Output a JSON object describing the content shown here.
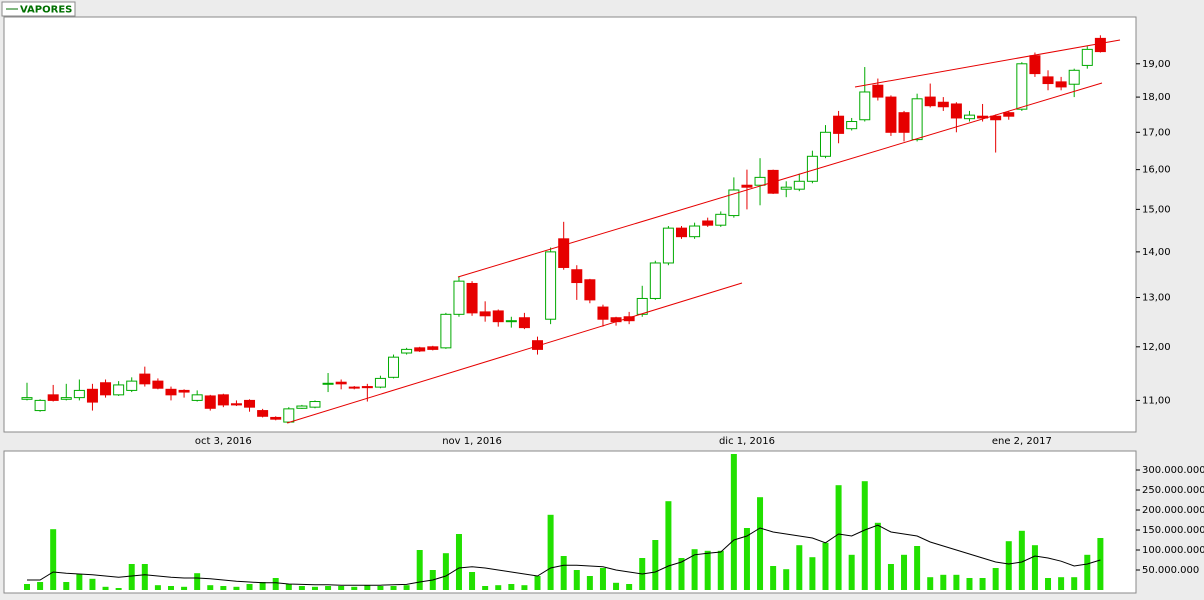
{
  "chart_data": [
    {
      "type": "candlestick",
      "legend": "VAPORES",
      "log_scale": true,
      "up_color": "#00aa00",
      "down_color": "#e60000",
      "categories": [
        null,
        null,
        null,
        null,
        null,
        null,
        null,
        null,
        null,
        null,
        null,
        null,
        null,
        null,
        null,
        "oct 3, 2016",
        null,
        null,
        null,
        null,
        null,
        null,
        null,
        null,
        null,
        null,
        null,
        null,
        null,
        null,
        null,
        null,
        null,
        null,
        "nov 1, 2016",
        null,
        null,
        null,
        null,
        null,
        null,
        null,
        null,
        null,
        null,
        null,
        null,
        null,
        null,
        null,
        null,
        null,
        null,
        null,
        null,
        "dic 1, 2016",
        null,
        null,
        null,
        null,
        null,
        null,
        null,
        null,
        null,
        null,
        null,
        null,
        null,
        null,
        null,
        null,
        null,
        null,
        null,
        null,
        "ene 2, 2017",
        null,
        null,
        null,
        null,
        null,
        null
      ],
      "open": [
        11.02,
        10.82,
        11.1,
        11.02,
        11.05,
        11.2,
        11.32,
        11.1,
        11.18,
        11.48,
        11.35,
        11.2,
        11.18,
        11.0,
        11.08,
        11.1,
        10.94,
        11.0,
        10.82,
        10.7,
        10.62,
        10.86,
        10.88,
        11.3,
        11.33,
        11.24,
        11.25,
        11.24,
        11.42,
        11.88,
        11.98,
        12.0,
        11.98,
        12.65,
        13.3,
        12.7,
        12.72,
        12.5,
        12.58,
        12.12,
        12.55,
        14.3,
        13.6,
        13.38,
        12.8,
        12.58,
        12.6,
        12.65,
        12.98,
        13.75,
        14.55,
        14.35,
        14.72,
        14.62,
        14.85,
        15.6,
        15.6,
        15.98,
        15.5,
        15.5,
        15.7,
        16.35,
        17.45,
        17.1,
        17.35,
        18.35,
        18.0,
        17.55,
        16.8,
        18.0,
        17.85,
        17.8,
        17.38,
        17.45,
        17.45,
        17.55,
        17.65,
        19.25,
        18.6,
        18.45,
        18.38,
        18.95,
        19.8
      ],
      "high": [
        11.32,
        11.02,
        11.28,
        11.3,
        11.38,
        11.3,
        11.38,
        11.35,
        11.42,
        11.62,
        11.4,
        11.25,
        11.2,
        11.18,
        11.1,
        11.12,
        11.0,
        11.02,
        10.85,
        10.72,
        10.88,
        10.92,
        11.0,
        11.5,
        11.38,
        11.26,
        11.3,
        11.45,
        11.85,
        11.98,
        12.0,
        12.02,
        12.68,
        13.45,
        13.35,
        12.92,
        12.75,
        12.6,
        12.68,
        12.2,
        14.1,
        14.7,
        13.7,
        13.4,
        12.85,
        12.6,
        12.7,
        13.25,
        13.8,
        14.6,
        14.6,
        14.68,
        14.8,
        14.95,
        15.8,
        16.0,
        16.3,
        16.0,
        15.7,
        15.9,
        16.5,
        17.2,
        17.6,
        17.4,
        18.9,
        18.55,
        18.05,
        17.6,
        18.1,
        18.4,
        18.0,
        17.85,
        17.6,
        17.8,
        17.5,
        17.6,
        19.05,
        19.35,
        18.8,
        18.6,
        18.85,
        19.55,
        19.9
      ],
      "low": [
        11.0,
        10.8,
        10.98,
        11.0,
        11.0,
        10.82,
        11.05,
        11.08,
        11.15,
        11.25,
        11.2,
        11.0,
        11.05,
        10.98,
        10.82,
        10.88,
        10.9,
        10.8,
        10.7,
        10.65,
        10.6,
        10.85,
        10.86,
        11.15,
        11.2,
        11.2,
        10.98,
        11.22,
        11.4,
        11.85,
        11.9,
        11.93,
        11.96,
        12.6,
        12.62,
        12.5,
        12.4,
        12.38,
        12.35,
        11.85,
        12.45,
        13.6,
        12.95,
        12.88,
        12.4,
        12.42,
        12.45,
        12.6,
        12.95,
        13.7,
        14.3,
        14.3,
        14.58,
        14.58,
        14.8,
        15.0,
        15.1,
        15.38,
        15.3,
        15.45,
        15.65,
        16.3,
        16.7,
        17.05,
        17.3,
        17.9,
        16.9,
        16.75,
        16.75,
        17.7,
        17.6,
        17.0,
        17.3,
        17.3,
        16.45,
        17.35,
        17.6,
        18.6,
        18.2,
        18.2,
        18.0,
        18.85,
        19.35
      ],
      "close": [
        11.05,
        11.0,
        11.0,
        11.05,
        11.18,
        10.97,
        11.1,
        11.28,
        11.35,
        11.3,
        11.22,
        11.1,
        11.15,
        11.1,
        10.86,
        10.92,
        10.92,
        10.88,
        10.72,
        10.67,
        10.85,
        10.9,
        10.98,
        11.31,
        11.3,
        11.23,
        11.23,
        11.4,
        11.8,
        11.95,
        11.92,
        11.95,
        12.65,
        13.35,
        12.68,
        12.62,
        12.5,
        12.52,
        12.38,
        11.95,
        14.0,
        13.65,
        13.32,
        12.95,
        12.55,
        12.5,
        12.52,
        12.98,
        13.75,
        14.55,
        14.35,
        14.6,
        14.62,
        14.88,
        15.48,
        15.55,
        15.8,
        15.4,
        15.55,
        15.7,
        16.35,
        17.0,
        16.97,
        17.3,
        18.15,
        18.0,
        17.0,
        17.0,
        17.95,
        17.75,
        17.72,
        17.4,
        17.48,
        17.4,
        17.35,
        17.45,
        19.0,
        18.7,
        18.4,
        18.3,
        18.8,
        19.45,
        19.38
      ],
      "ylim": [
        10.45,
        20.4
      ],
      "yticks": [
        {
          "value": 11,
          "label": "11,00"
        },
        {
          "value": 12,
          "label": "12,00"
        },
        {
          "value": 13,
          "label": "13,00"
        },
        {
          "value": 14,
          "label": "14,00"
        },
        {
          "value": 15,
          "label": "15,00"
        },
        {
          "value": 16,
          "label": "16,00"
        },
        {
          "value": 17,
          "label": "17,00"
        },
        {
          "value": 18,
          "label": "18,00"
        },
        {
          "value": 19,
          "label": "19,00"
        }
      ]
    },
    {
      "type": "bar",
      "series": [
        {
          "type": "bar",
          "color": "#22e000",
          "values": [
            15000000,
            20000000,
            152000000,
            20000000,
            40000000,
            28000000,
            8000000,
            5000000,
            65000000,
            65000000,
            12000000,
            10000000,
            8000000,
            42000000,
            12000000,
            10000000,
            8000000,
            15000000,
            20000000,
            30000000,
            15000000,
            10000000,
            8000000,
            10000000,
            10000000,
            8000000,
            12000000,
            10000000,
            10000000,
            12000000,
            100000000,
            50000000,
            92000000,
            140000000,
            45000000,
            10000000,
            12000000,
            15000000,
            12000000,
            35000000,
            188000000,
            85000000,
            50000000,
            35000000,
            55000000,
            18000000,
            15000000,
            80000000,
            125000000,
            222000000,
            80000000,
            102000000,
            98000000,
            98000000,
            340000000,
            155000000,
            232000000,
            60000000,
            52000000,
            112000000,
            82000000,
            118000000,
            262000000,
            88000000,
            272000000,
            168000000,
            65000000,
            88000000,
            110000000,
            32000000,
            38000000,
            38000000,
            30000000,
            30000000,
            55000000,
            122000000,
            148000000,
            112000000,
            30000000,
            32000000,
            32000000,
            88000000,
            130000000
          ]
        },
        {
          "type": "line",
          "color": "#000000",
          "values": [
            25000000,
            25000000,
            45000000,
            42000000,
            40000000,
            38000000,
            35000000,
            32000000,
            35000000,
            38000000,
            35000000,
            32000000,
            30000000,
            30000000,
            28000000,
            25000000,
            22000000,
            20000000,
            18000000,
            18000000,
            15000000,
            14000000,
            13000000,
            13000000,
            12000000,
            12000000,
            12000000,
            12000000,
            13000000,
            14000000,
            20000000,
            25000000,
            35000000,
            55000000,
            58000000,
            55000000,
            50000000,
            45000000,
            40000000,
            35000000,
            55000000,
            62000000,
            62000000,
            60000000,
            58000000,
            50000000,
            45000000,
            40000000,
            45000000,
            60000000,
            70000000,
            88000000,
            92000000,
            95000000,
            125000000,
            135000000,
            155000000,
            145000000,
            140000000,
            135000000,
            130000000,
            118000000,
            140000000,
            135000000,
            150000000,
            162000000,
            145000000,
            140000000,
            135000000,
            120000000,
            110000000,
            100000000,
            90000000,
            80000000,
            70000000,
            65000000,
            70000000,
            85000000,
            80000000,
            72000000,
            60000000,
            65000000,
            75000000
          ]
        }
      ],
      "ylim": [
        0,
        345000000
      ],
      "yticks": [
        {
          "value": 50000000,
          "label": "50.000.000"
        },
        {
          "value": 100000000,
          "label": "100.000.000"
        },
        {
          "value": 150000000,
          "label": "150.000.000"
        },
        {
          "value": 200000000,
          "label": "200.000.000"
        },
        {
          "value": 250000000,
          "label": "250.000.000"
        },
        {
          "value": 300000000,
          "label": "300.000.000"
        }
      ]
    }
  ]
}
